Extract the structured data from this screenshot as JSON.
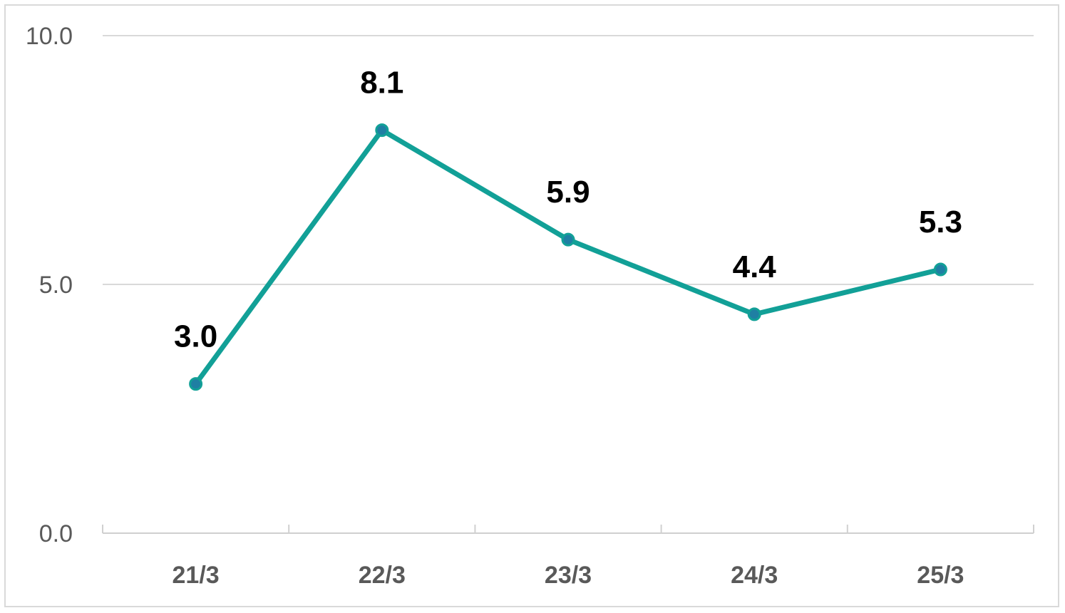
{
  "chart_data": {
    "type": "line",
    "categories": [
      "21/3",
      "22/3",
      "23/3",
      "24/3",
      "25/3"
    ],
    "series": [
      {
        "values": [
          3.0,
          8.1,
          5.9,
          4.4,
          5.3
        ]
      }
    ],
    "data_labels": [
      "3.0",
      "8.1",
      "5.9",
      "4.4",
      "5.3"
    ],
    "y_ticks": [
      "0.0",
      "5.0",
      "10.0"
    ],
    "ylim": [
      0,
      10
    ],
    "grid": true,
    "legend": "none",
    "colors": {
      "line": "#12a097",
      "marker": "#1f7fa3",
      "grid": "#d9d9d9"
    }
  }
}
